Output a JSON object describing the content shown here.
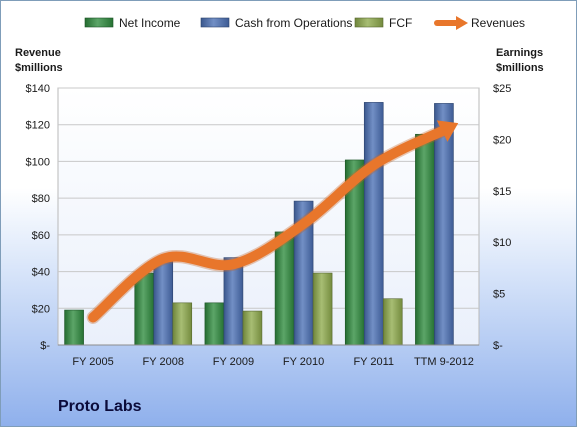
{
  "company": "Proto Labs",
  "chart_data": {
    "type": "bar+line",
    "categories": [
      "FY 2005",
      "FY 2008",
      "FY 2009",
      "FY 2010",
      "FY 2011",
      "TTM 9-2012"
    ],
    "left_axis": {
      "label_line1": "Revenue",
      "label_line2": "$millions",
      "ylim": [
        0,
        140
      ],
      "ticks": [
        0,
        20,
        40,
        60,
        80,
        100,
        120,
        140
      ],
      "tick_labels": [
        "$-",
        "$20",
        "$40",
        "$60",
        "$80",
        "$100",
        "$120",
        "$140"
      ]
    },
    "right_axis": {
      "label_line1": "Earnings",
      "label_line2": "$millions",
      "ylim": [
        0,
        25
      ],
      "ticks": [
        0,
        5,
        10,
        15,
        20,
        25
      ],
      "tick_labels": [
        "$-",
        "$5",
        "$10",
        "$15",
        "$20",
        "$25"
      ]
    },
    "series": [
      {
        "name": "Net Income",
        "type": "bar",
        "axis": "right",
        "color": "#2e8b3e",
        "values": [
          3.4,
          7.0,
          4.1,
          11.0,
          18.0,
          20.5
        ]
      },
      {
        "name": "Cash from Operations",
        "type": "bar",
        "axis": "right",
        "color": "#4a6fb5",
        "values": [
          null,
          8.3,
          8.5,
          14.0,
          23.6,
          23.5
        ]
      },
      {
        "name": "FCF",
        "type": "bar",
        "axis": "right",
        "color": "#8eaa4c",
        "values": [
          null,
          4.1,
          3.3,
          7.0,
          4.5,
          null
        ]
      },
      {
        "name": "Revenues",
        "type": "line",
        "axis": "left",
        "color": "#e8762b",
        "values": [
          15,
          47,
          44,
          66,
          98,
          117
        ]
      }
    ],
    "legend_position": "top",
    "grid": true
  }
}
